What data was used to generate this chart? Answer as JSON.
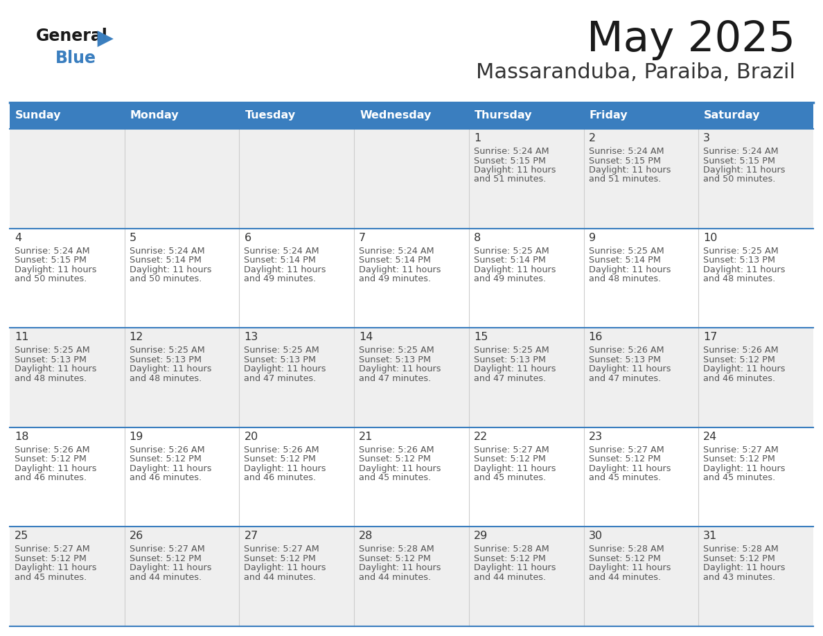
{
  "title": "May 2025",
  "subtitle": "Massaranduba, Paraiba, Brazil",
  "days_of_week": [
    "Sunday",
    "Monday",
    "Tuesday",
    "Wednesday",
    "Thursday",
    "Friday",
    "Saturday"
  ],
  "header_bg": "#3A7EBF",
  "header_text": "#FFFFFF",
  "cell_bg_odd": "#EFEFEF",
  "cell_bg_even": "#FFFFFF",
  "cell_text": "#444444",
  "day_num_color": "#333333",
  "line_color": "#3A7EBF",
  "bg_color": "#FFFFFF",
  "title_color": "#1A1A1A",
  "subtitle_color": "#333333",
  "num_rows": 5,
  "num_cols": 7,
  "calendar": [
    [
      null,
      null,
      null,
      null,
      {
        "day": 1,
        "sunrise": "5:24 AM",
        "sunset": "5:15 PM",
        "daylight": "11 hours",
        "daylight2": "and 51 minutes."
      },
      {
        "day": 2,
        "sunrise": "5:24 AM",
        "sunset": "5:15 PM",
        "daylight": "11 hours",
        "daylight2": "and 51 minutes."
      },
      {
        "day": 3,
        "sunrise": "5:24 AM",
        "sunset": "5:15 PM",
        "daylight": "11 hours",
        "daylight2": "and 50 minutes."
      }
    ],
    [
      {
        "day": 4,
        "sunrise": "5:24 AM",
        "sunset": "5:15 PM",
        "daylight": "11 hours",
        "daylight2": "and 50 minutes."
      },
      {
        "day": 5,
        "sunrise": "5:24 AM",
        "sunset": "5:14 PM",
        "daylight": "11 hours",
        "daylight2": "and 50 minutes."
      },
      {
        "day": 6,
        "sunrise": "5:24 AM",
        "sunset": "5:14 PM",
        "daylight": "11 hours",
        "daylight2": "and 49 minutes."
      },
      {
        "day": 7,
        "sunrise": "5:24 AM",
        "sunset": "5:14 PM",
        "daylight": "11 hours",
        "daylight2": "and 49 minutes."
      },
      {
        "day": 8,
        "sunrise": "5:25 AM",
        "sunset": "5:14 PM",
        "daylight": "11 hours",
        "daylight2": "and 49 minutes."
      },
      {
        "day": 9,
        "sunrise": "5:25 AM",
        "sunset": "5:14 PM",
        "daylight": "11 hours",
        "daylight2": "and 48 minutes."
      },
      {
        "day": 10,
        "sunrise": "5:25 AM",
        "sunset": "5:13 PM",
        "daylight": "11 hours",
        "daylight2": "and 48 minutes."
      }
    ],
    [
      {
        "day": 11,
        "sunrise": "5:25 AM",
        "sunset": "5:13 PM",
        "daylight": "11 hours",
        "daylight2": "and 48 minutes."
      },
      {
        "day": 12,
        "sunrise": "5:25 AM",
        "sunset": "5:13 PM",
        "daylight": "11 hours",
        "daylight2": "and 48 minutes."
      },
      {
        "day": 13,
        "sunrise": "5:25 AM",
        "sunset": "5:13 PM",
        "daylight": "11 hours",
        "daylight2": "and 47 minutes."
      },
      {
        "day": 14,
        "sunrise": "5:25 AM",
        "sunset": "5:13 PM",
        "daylight": "11 hours",
        "daylight2": "and 47 minutes."
      },
      {
        "day": 15,
        "sunrise": "5:25 AM",
        "sunset": "5:13 PM",
        "daylight": "11 hours",
        "daylight2": "and 47 minutes."
      },
      {
        "day": 16,
        "sunrise": "5:26 AM",
        "sunset": "5:13 PM",
        "daylight": "11 hours",
        "daylight2": "and 47 minutes."
      },
      {
        "day": 17,
        "sunrise": "5:26 AM",
        "sunset": "5:12 PM",
        "daylight": "11 hours",
        "daylight2": "and 46 minutes."
      }
    ],
    [
      {
        "day": 18,
        "sunrise": "5:26 AM",
        "sunset": "5:12 PM",
        "daylight": "11 hours",
        "daylight2": "and 46 minutes."
      },
      {
        "day": 19,
        "sunrise": "5:26 AM",
        "sunset": "5:12 PM",
        "daylight": "11 hours",
        "daylight2": "and 46 minutes."
      },
      {
        "day": 20,
        "sunrise": "5:26 AM",
        "sunset": "5:12 PM",
        "daylight": "11 hours",
        "daylight2": "and 46 minutes."
      },
      {
        "day": 21,
        "sunrise": "5:26 AM",
        "sunset": "5:12 PM",
        "daylight": "11 hours",
        "daylight2": "and 45 minutes."
      },
      {
        "day": 22,
        "sunrise": "5:27 AM",
        "sunset": "5:12 PM",
        "daylight": "11 hours",
        "daylight2": "and 45 minutes."
      },
      {
        "day": 23,
        "sunrise": "5:27 AM",
        "sunset": "5:12 PM",
        "daylight": "11 hours",
        "daylight2": "and 45 minutes."
      },
      {
        "day": 24,
        "sunrise": "5:27 AM",
        "sunset": "5:12 PM",
        "daylight": "11 hours",
        "daylight2": "and 45 minutes."
      }
    ],
    [
      {
        "day": 25,
        "sunrise": "5:27 AM",
        "sunset": "5:12 PM",
        "daylight": "11 hours",
        "daylight2": "and 45 minutes."
      },
      {
        "day": 26,
        "sunrise": "5:27 AM",
        "sunset": "5:12 PM",
        "daylight": "11 hours",
        "daylight2": "and 44 minutes."
      },
      {
        "day": 27,
        "sunrise": "5:27 AM",
        "sunset": "5:12 PM",
        "daylight": "11 hours",
        "daylight2": "and 44 minutes."
      },
      {
        "day": 28,
        "sunrise": "5:28 AM",
        "sunset": "5:12 PM",
        "daylight": "11 hours",
        "daylight2": "and 44 minutes."
      },
      {
        "day": 29,
        "sunrise": "5:28 AM",
        "sunset": "5:12 PM",
        "daylight": "11 hours",
        "daylight2": "and 44 minutes."
      },
      {
        "day": 30,
        "sunrise": "5:28 AM",
        "sunset": "5:12 PM",
        "daylight": "11 hours",
        "daylight2": "and 44 minutes."
      },
      {
        "day": 31,
        "sunrise": "5:28 AM",
        "sunset": "5:12 PM",
        "daylight": "11 hours",
        "daylight2": "and 43 minutes."
      }
    ]
  ]
}
